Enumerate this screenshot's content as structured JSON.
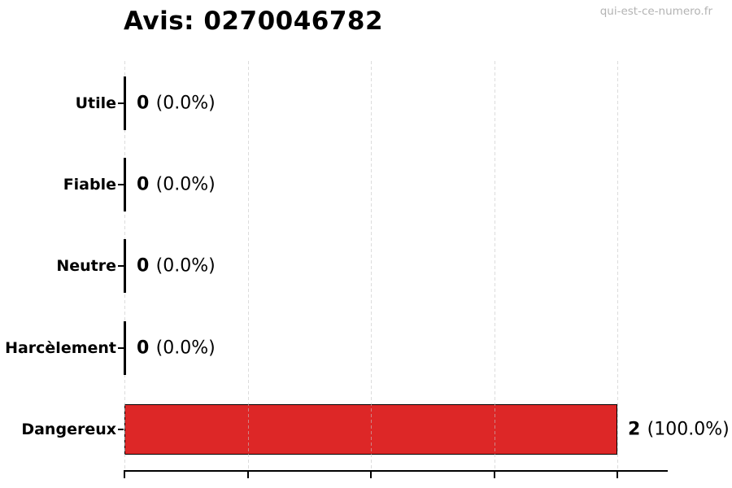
{
  "header": {
    "title": "Avis: 0270046782",
    "watermark": "qui-est-ce-numero.fr"
  },
  "chart_data": {
    "type": "bar",
    "orientation": "horizontal",
    "title": "Avis: 0270046782",
    "categories": [
      "Utile",
      "Fiable",
      "Neutre",
      "Harcèlement",
      "Dangereux"
    ],
    "values": [
      0,
      0,
      0,
      0,
      2
    ],
    "percentages": [
      "0.0%",
      "0.0%",
      "0.0%",
      "0.0%",
      "100.0%"
    ],
    "value_labels": [
      "0 (0.0%)",
      "0 (0.0%)",
      "0 (0.0%)",
      "0 (0.0%)",
      "2 (100.0%)"
    ],
    "xlabel": "",
    "ylabel": "",
    "xlim": [
      0,
      2.2
    ],
    "x_ticks": [
      0,
      0.5,
      1.0,
      1.5,
      2.0
    ],
    "x_tick_labels_visible": false,
    "grid": "vertical-dashed",
    "legend": "none",
    "colors": {
      "bar_fill": "#dd2727",
      "bar_edge": "#000000",
      "grid": "#c4c4c4",
      "axis": "#000000",
      "text": "#000000",
      "watermark": "#b3b3b3"
    }
  }
}
